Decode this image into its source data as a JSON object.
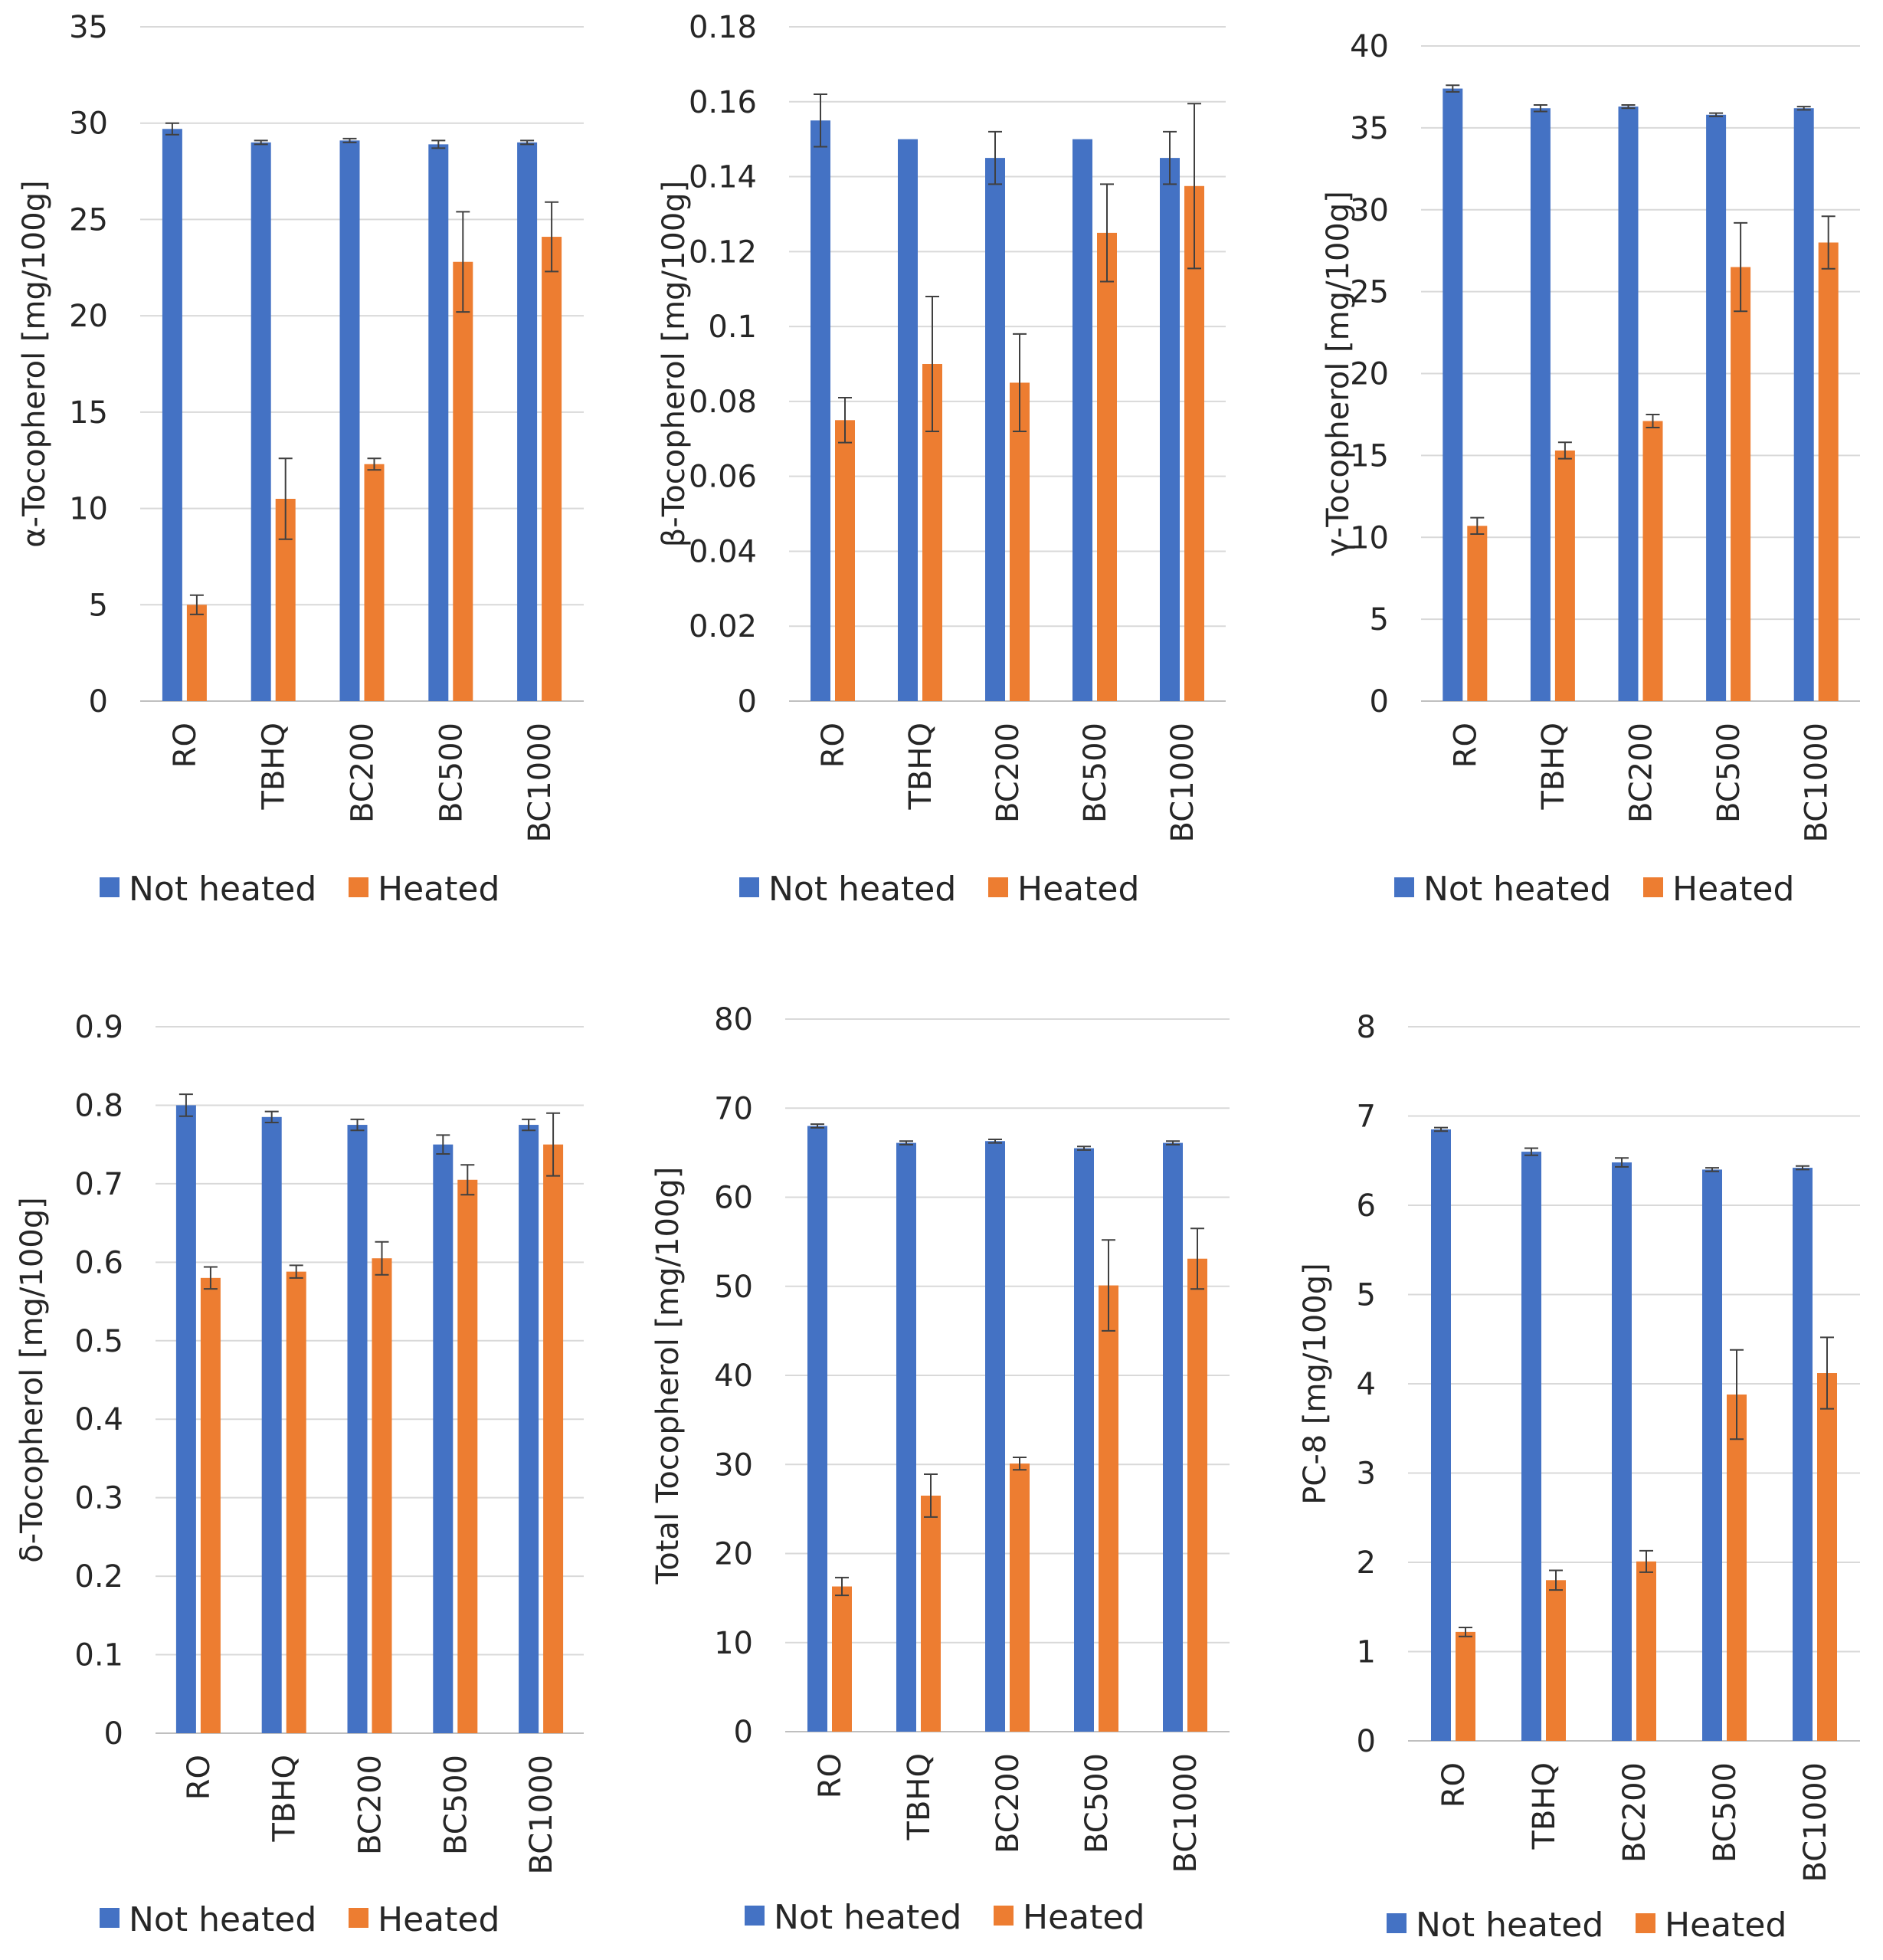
{
  "colors": {
    "not_heated": "#4472C4",
    "heated": "#ED7D31"
  },
  "chart_data": [
    {
      "type": "bar",
      "ylabel": "α-Tocopherol [mg/100g]",
      "ylim": [
        0,
        35
      ],
      "yticks": [
        0,
        5,
        10,
        15,
        20,
        25,
        30,
        35
      ],
      "categories": [
        "RO",
        "TBHQ",
        "BC200",
        "BC500",
        "BC1000"
      ],
      "series": [
        {
          "name": "Not heated",
          "values": [
            29.7,
            29.0,
            29.1,
            28.9,
            29.0
          ],
          "errors": [
            0.3,
            0.1,
            0.1,
            0.2,
            0.1
          ]
        },
        {
          "name": "Heated",
          "values": [
            5.0,
            10.5,
            12.3,
            22.8,
            24.1
          ],
          "errors": [
            0.5,
            2.1,
            0.3,
            2.6,
            1.8
          ]
        }
      ]
    },
    {
      "type": "bar",
      "ylabel": "β-Tocopherol [mg/100g]",
      "ylim": [
        0,
        0.18
      ],
      "yticks": [
        0,
        0.02,
        0.04,
        0.06,
        0.08,
        0.1,
        0.12,
        0.14,
        0.16,
        0.18
      ],
      "categories": [
        "RO",
        "TBHQ",
        "BC200",
        "BC500",
        "BC1000"
      ],
      "series": [
        {
          "name": "Not heated",
          "values": [
            0.155,
            0.15,
            0.145,
            0.15,
            0.145
          ],
          "errors": [
            0.007,
            0.0,
            0.007,
            0.0,
            0.007
          ]
        },
        {
          "name": "Heated",
          "values": [
            0.075,
            0.09,
            0.085,
            0.125,
            0.1375
          ],
          "errors": [
            0.006,
            0.018,
            0.013,
            0.013,
            0.022
          ]
        }
      ]
    },
    {
      "type": "bar",
      "ylabel": "γ-Tocopherol [mg/100g]",
      "ylim": [
        0,
        40
      ],
      "yticks": [
        0,
        5,
        10,
        15,
        20,
        25,
        30,
        35,
        40
      ],
      "categories": [
        "RO",
        "TBHQ",
        "BC200",
        "BC500",
        "BC1000"
      ],
      "series": [
        {
          "name": "Not heated",
          "values": [
            37.4,
            36.2,
            36.3,
            35.8,
            36.2
          ],
          "errors": [
            0.2,
            0.2,
            0.1,
            0.1,
            0.1
          ]
        },
        {
          "name": "Heated",
          "values": [
            10.7,
            15.3,
            17.1,
            26.5,
            28.0
          ],
          "errors": [
            0.5,
            0.5,
            0.4,
            2.7,
            1.6
          ]
        }
      ]
    },
    {
      "type": "bar",
      "ylabel": "δ-Tocopherol [mg/100g]",
      "ylim": [
        0,
        0.9
      ],
      "yticks": [
        0,
        0.1,
        0.2,
        0.3,
        0.4,
        0.5,
        0.6,
        0.7,
        0.8,
        0.9
      ],
      "categories": [
        "RO",
        "TBHQ",
        "BC200",
        "BC500",
        "BC1000"
      ],
      "series": [
        {
          "name": "Not heated",
          "values": [
            0.8,
            0.785,
            0.775,
            0.75,
            0.775
          ],
          "errors": [
            0.014,
            0.007,
            0.007,
            0.012,
            0.007
          ]
        },
        {
          "name": "Heated",
          "values": [
            0.58,
            0.588,
            0.605,
            0.705,
            0.75
          ],
          "errors": [
            0.014,
            0.008,
            0.021,
            0.019,
            0.04
          ]
        }
      ]
    },
    {
      "type": "bar",
      "ylabel": "Total Tocopherol [mg/100g]",
      "ylim": [
        0,
        80
      ],
      "yticks": [
        0,
        10,
        20,
        30,
        40,
        50,
        60,
        70,
        80
      ],
      "categories": [
        "RO",
        "TBHQ",
        "BC200",
        "BC500",
        "BC1000"
      ],
      "series": [
        {
          "name": "Not heated",
          "values": [
            68.0,
            66.1,
            66.3,
            65.5,
            66.1
          ],
          "errors": [
            0.2,
            0.2,
            0.2,
            0.2,
            0.2
          ]
        },
        {
          "name": "Heated",
          "values": [
            16.3,
            26.5,
            30.1,
            50.1,
            53.1
          ],
          "errors": [
            1.0,
            2.4,
            0.7,
            5.1,
            3.4
          ]
        }
      ]
    },
    {
      "type": "bar",
      "ylabel": "PC-8 [mg/100g]",
      "ylim": [
        0,
        8
      ],
      "yticks": [
        0,
        1,
        2,
        3,
        4,
        5,
        6,
        7,
        8
      ],
      "categories": [
        "RO",
        "TBHQ",
        "BC200",
        "BC500",
        "BC1000"
      ],
      "series": [
        {
          "name": "Not heated",
          "values": [
            6.85,
            6.6,
            6.48,
            6.4,
            6.42
          ],
          "errors": [
            0.02,
            0.04,
            0.05,
            0.02,
            0.02
          ]
        },
        {
          "name": "Heated",
          "values": [
            1.22,
            1.8,
            2.01,
            3.88,
            4.12
          ],
          "errors": [
            0.05,
            0.11,
            0.12,
            0.5,
            0.4
          ]
        }
      ]
    }
  ]
}
